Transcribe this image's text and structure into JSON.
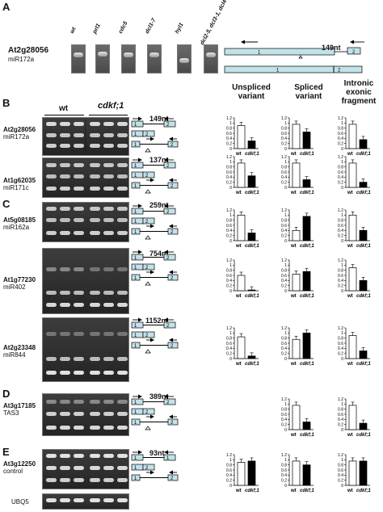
{
  "panels": [
    "A",
    "B",
    "C",
    "D",
    "E"
  ],
  "column_headers": {
    "unspliced": "Unspliced variant",
    "spliced": "Spliced variant",
    "intronic": "Intronic exonic fragment"
  },
  "group_labels": {
    "wt": "wt",
    "mutant": "cdkf;1"
  },
  "panel_a": {
    "gene": "At2g28056",
    "mirna": "miR172a",
    "strains": [
      "wt",
      "prl1",
      "cdc5",
      "dcl1-7",
      "hyl1",
      "dcl2-5, dcl3-1, dcl4-2"
    ],
    "amplicon": "149nt"
  },
  "rows": [
    {
      "panel": "B",
      "gene": "At2g28056",
      "mirna": "miR172a",
      "amplicon": "149nt",
      "unspliced": [
        0.9,
        0.3
      ],
      "spliced": [
        0.95,
        0.65
      ],
      "intronic": [
        0.95,
        0.35
      ]
    },
    {
      "panel": "",
      "gene": "At1g62035",
      "mirna": "miR171c",
      "amplicon": "137nt",
      "unspliced": [
        0.95,
        0.45
      ],
      "spliced": [
        0.95,
        0.3
      ],
      "intronic": [
        0.95,
        0.2
      ]
    },
    {
      "panel": "C",
      "gene": "At5g08185",
      "mirna": "miR162a",
      "amplicon": "259nt",
      "unspliced": [
        1.0,
        0.3
      ],
      "spliced": [
        0.4,
        0.95
      ],
      "intronic": [
        1.0,
        0.4
      ]
    },
    {
      "panel": "",
      "gene": "At1g77230",
      "mirna": "miR402",
      "amplicon": "754nt",
      "unspliced": [
        0.6,
        0.03
      ],
      "spliced": [
        0.65,
        0.75
      ],
      "intronic": [
        0.9,
        0.4
      ]
    },
    {
      "panel": "",
      "gene": "At2g23348",
      "mirna": "miR844",
      "amplicon": "1152nt",
      "unspliced": [
        0.85,
        0.1
      ],
      "spliced": [
        0.75,
        1.0
      ],
      "intronic": [
        0.9,
        0.3
      ]
    },
    {
      "panel": "D",
      "gene": "At3g17185",
      "mirna": "TAS3",
      "amplicon": "389nt",
      "unspliced": null,
      "spliced": [
        0.95,
        0.3
      ],
      "intronic": [
        0.95,
        0.25
      ]
    },
    {
      "panel": "E",
      "gene": "At3g12250",
      "mirna": "control",
      "amplicon": "93nt",
      "unspliced": [
        0.9,
        0.95
      ],
      "spliced": [
        0.95,
        0.8
      ],
      "intronic": [
        0.95,
        0.95
      ]
    }
  ],
  "loading_control": "UBQ5",
  "chart_data": {
    "type": "bar",
    "categories": [
      "wt",
      "cdkf;1"
    ],
    "ylim": [
      0,
      1.2
    ],
    "yticks": [
      "0",
      "0.2",
      "0.4",
      "0.6",
      "0.8",
      "1",
      "1.2"
    ],
    "colors": {
      "wt": "#ffffff",
      "mutant": "#000000"
    },
    "note": "one small bar chart per row and variant; values in rows[]"
  }
}
